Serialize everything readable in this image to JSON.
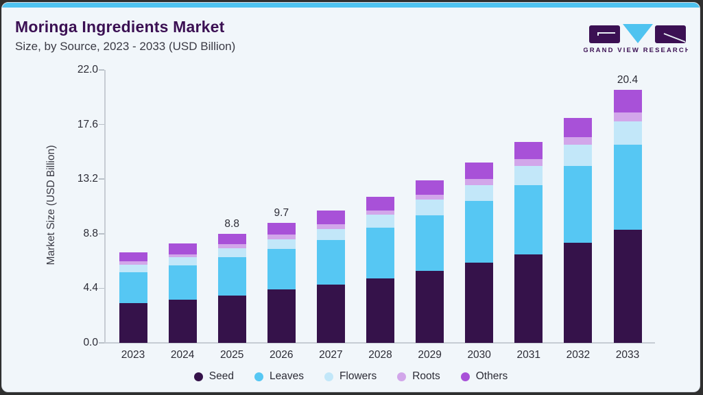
{
  "page": {
    "outer_bg": "#2f2f2f",
    "card_bg": "#f1f6fa",
    "accent_color": "#4fc3f0",
    "border_color": "#d9dfe6"
  },
  "header": {
    "title": "Moringa Ingredients Market",
    "subtitle": "Size, by Source, 2023 - 2033 (USD Billion)",
    "title_color": "#3b1053"
  },
  "logo": {
    "text": "GRAND VIEW RESEARCH",
    "dark_color": "#3b1053",
    "cyan_color": "#4fc3f0"
  },
  "chart_data": {
    "type": "bar",
    "stacked": true,
    "title": "Moringa Ingredients Market Size, by Source, 2023 - 2033 (USD Billion)",
    "xlabel": "",
    "ylabel": "Market Size (USD Billion)",
    "categories": [
      "2023",
      "2024",
      "2025",
      "2026",
      "2027",
      "2028",
      "2029",
      "2030",
      "2031",
      "2032",
      "2033"
    ],
    "series": [
      {
        "name": "Seed",
        "color": "#35124a",
        "values": [
          3.2,
          3.5,
          3.8,
          4.3,
          4.7,
          5.2,
          5.8,
          6.45,
          7.15,
          8.05,
          9.1
        ]
      },
      {
        "name": "Leaves",
        "color": "#56c7f3",
        "values": [
          2.5,
          2.75,
          3.1,
          3.25,
          3.6,
          4.1,
          4.5,
          5.0,
          5.55,
          6.2,
          6.9
        ]
      },
      {
        "name": "Flowers",
        "color": "#c2e7f9",
        "values": [
          0.6,
          0.65,
          0.75,
          0.8,
          0.9,
          1.05,
          1.25,
          1.25,
          1.55,
          1.75,
          1.85
        ]
      },
      {
        "name": "Roots",
        "color": "#d2a6ea",
        "values": [
          0.3,
          0.25,
          0.3,
          0.4,
          0.35,
          0.3,
          0.4,
          0.5,
          0.55,
          0.6,
          0.75
        ]
      },
      {
        "name": "Others",
        "color": "#a851d8",
        "values": [
          0.7,
          0.85,
          0.85,
          0.95,
          1.1,
          1.15,
          1.15,
          1.35,
          1.4,
          1.55,
          1.8
        ]
      }
    ],
    "totals": [
      7.3,
      8.0,
      8.8,
      9.7,
      10.65,
      11.8,
      13.1,
      14.55,
      16.2,
      18.15,
      20.4
    ],
    "annotations": [
      {
        "category": "2025",
        "text": "8.8"
      },
      {
        "category": "2026",
        "text": "9.7"
      },
      {
        "category": "2033",
        "text": "20.4"
      }
    ],
    "ylim": [
      0,
      22
    ],
    "yticks": [
      "0.0",
      "4.4",
      "8.8",
      "13.2",
      "17.6",
      "22.0"
    ],
    "grid": false,
    "legend_position": "bottom"
  }
}
